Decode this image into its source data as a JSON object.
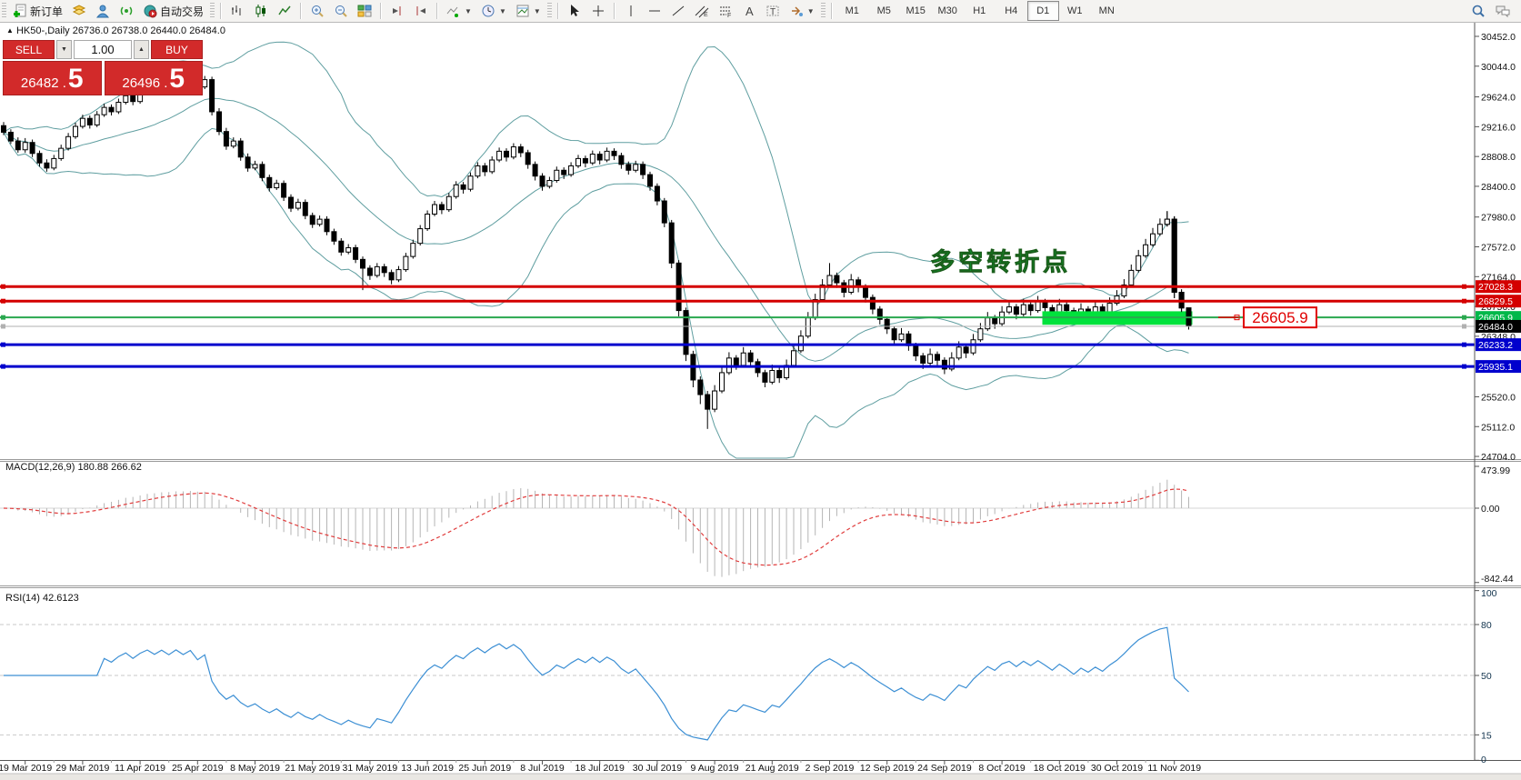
{
  "toolbar": {
    "new_order_label": "新订单",
    "auto_trading_label": "自动交易",
    "timeframes": [
      "M1",
      "M5",
      "M15",
      "M30",
      "H1",
      "H4",
      "D1",
      "W1",
      "MN"
    ],
    "active_timeframe": "D1",
    "icon_names": [
      "new-order-icon",
      "quotes-icon",
      "market-watch-icon",
      "signal-icon",
      "autotrade-icon",
      "bar-chart-icon",
      "candle-chart-icon",
      "line-chart-icon",
      "zoom-in-icon",
      "zoom-out-icon",
      "tile-windows-icon",
      "shift-end-icon",
      "shift-left-icon",
      "indicators-icon",
      "periods-clock-icon",
      "templates-icon",
      "cursor-icon",
      "crosshair-icon",
      "vline-icon",
      "hline-icon",
      "trendline-icon",
      "channel-icon",
      "fibo-icon",
      "text-icon",
      "label-icon",
      "shapes-icon",
      "search-icon",
      "chat-icon"
    ]
  },
  "title": {
    "symbol_period": "HK50-,Daily",
    "ohlc": "26736.0 26738.0 26440.0 26484.0",
    "marker": "▲"
  },
  "trade_panel": {
    "sell_label": "SELL",
    "buy_label": "BUY",
    "volume": "1.00",
    "sell_price_small": "26482 .",
    "sell_price_big": "5",
    "buy_price_small": "26496 .",
    "buy_price_big": "5"
  },
  "annotation": {
    "text": "多空转折点",
    "color": "#00cc3f",
    "index": 129,
    "price": 27250
  },
  "price_label_box": {
    "text": "26605.9",
    "color": "#e00000"
  },
  "levels": [
    {
      "label": "27028.3",
      "value": 27028.3,
      "color": "#d40000",
      "badge_bg": "#d40000",
      "thickness": 3
    },
    {
      "label": "26829.5",
      "value": 26829.5,
      "color": "#d40000",
      "badge_bg": "#d40000",
      "thickness": 3
    },
    {
      "label": "26605.9",
      "value": 26605.9,
      "color": "#2aa84f",
      "badge_bg": "#00b84a",
      "thickness": 2
    },
    {
      "label": "26484.0",
      "value": 26484.0,
      "color": "#b0b0b0",
      "badge_bg": "#000000",
      "thickness": 1
    },
    {
      "label": "26233.2",
      "value": 26233.2,
      "color": "#0000cd",
      "badge_bg": "#0000cd",
      "thickness": 3
    },
    {
      "label": "25935.1",
      "value": 25935.1,
      "color": "#0000cd",
      "badge_bg": "#0000cd",
      "thickness": 3
    }
  ],
  "y_axis_ticks": [
    "30452.0",
    "30044.0",
    "29624.0",
    "29216.0",
    "28808.0",
    "28400.0",
    "27980.0",
    "27572.0",
    "27164.0",
    "26756.0",
    "26348.0",
    "25520.0",
    "25112.0",
    "24704.0"
  ],
  "x_axis_labels": [
    "19 Mar 2019",
    "29 Mar 2019",
    "11 Apr 2019",
    "25 Apr 2019",
    "8 May 2019",
    "21 May 2019",
    "31 May 2019",
    "13 Jun 2019",
    "25 Jun 2019",
    "8 Jul 2019",
    "18 Jul 2019",
    "30 Jul 2019",
    "9 Aug 2019",
    "21 Aug 2019",
    "2 Sep 2019",
    "12 Sep 2019",
    "24 Sep 2019",
    "8 Oct 2019",
    "18 Oct 2019",
    "30 Oct 2019",
    "11 Nov 2019"
  ],
  "x_tick_indices": [
    3,
    11,
    19,
    27,
    35,
    43,
    51,
    59,
    67,
    75,
    83,
    91,
    99,
    107,
    115,
    123,
    131,
    139,
    147,
    155,
    163
  ],
  "macd": {
    "title": "MACD(12,26,9) 180.88 266.62",
    "ticks": [
      {
        "label": "473.99",
        "value": 473.99
      },
      {
        "label": "0.00",
        "value": 0
      },
      {
        "label": "-842.44",
        "value": -842.44
      }
    ],
    "fast": 12,
    "slow": 26,
    "signal_period": 9
  },
  "rsi": {
    "title": "RSI(14) 42.6123",
    "period": 14,
    "ticks": [
      {
        "label": "100",
        "value": 100
      },
      {
        "label": "80",
        "value": 80
      },
      {
        "label": "50",
        "value": 50
      },
      {
        "label": "15",
        "value": 15
      },
      {
        "label": "0",
        "value": 0
      }
    ],
    "level_lines": [
      80,
      50,
      15
    ],
    "line_color": "#3c8fd4"
  },
  "chart_data": {
    "type": "candlestick",
    "symbol": "HK50-",
    "period": "Daily",
    "bollinger": {
      "period": 20,
      "deviation": 2,
      "color": "#5f9ea0"
    },
    "highlight_zone": {
      "from_index": 145,
      "price_top": 26690,
      "price_bottom": 26505,
      "color": "#00e23c"
    },
    "last_candle": {
      "open": 26736.0,
      "high": 26738.0,
      "low": 26440.0,
      "close": 26484.0
    },
    "candles": [
      [
        29230,
        29280,
        29100,
        29140
      ],
      [
        29140,
        29180,
        28980,
        29020
      ],
      [
        29020,
        29070,
        28860,
        28900
      ],
      [
        28900,
        29060,
        28860,
        29000
      ],
      [
        29000,
        29040,
        28800,
        28850
      ],
      [
        28850,
        28890,
        28670,
        28720
      ],
      [
        28720,
        28770,
        28600,
        28650
      ],
      [
        28650,
        28830,
        28620,
        28780
      ],
      [
        28780,
        28970,
        28750,
        28920
      ],
      [
        28920,
        29130,
        28890,
        29080
      ],
      [
        29080,
        29270,
        29050,
        29220
      ],
      [
        29220,
        29380,
        29190,
        29330
      ],
      [
        29330,
        29370,
        29190,
        29240
      ],
      [
        29240,
        29430,
        29210,
        29380
      ],
      [
        29380,
        29530,
        29350,
        29480
      ],
      [
        29480,
        29520,
        29370,
        29420
      ],
      [
        29420,
        29600,
        29390,
        29550
      ],
      [
        29550,
        29690,
        29520,
        29640
      ],
      [
        29640,
        29680,
        29510,
        29560
      ],
      [
        29560,
        29730,
        29530,
        29680
      ],
      [
        29680,
        29810,
        29650,
        29760
      ],
      [
        29760,
        29800,
        29650,
        29700
      ],
      [
        29700,
        29850,
        29670,
        29800
      ],
      [
        29800,
        29840,
        29690,
        29740
      ],
      [
        29740,
        29900,
        29710,
        29850
      ],
      [
        29850,
        29890,
        29740,
        29790
      ],
      [
        29790,
        29930,
        29760,
        29880
      ],
      [
        29880,
        29920,
        29710,
        29760
      ],
      [
        29760,
        29910,
        29730,
        29860
      ],
      [
        29860,
        29900,
        29370,
        29420
      ],
      [
        29420,
        29470,
        29100,
        29150
      ],
      [
        29150,
        29200,
        28900,
        28950
      ],
      [
        28950,
        29070,
        28920,
        29020
      ],
      [
        29020,
        29060,
        28750,
        28800
      ],
      [
        28800,
        28850,
        28600,
        28650
      ],
      [
        28650,
        28750,
        28620,
        28700
      ],
      [
        28700,
        28740,
        28470,
        28520
      ],
      [
        28520,
        28560,
        28330,
        28380
      ],
      [
        28380,
        28490,
        28350,
        28440
      ],
      [
        28440,
        28480,
        28200,
        28250
      ],
      [
        28250,
        28290,
        28050,
        28100
      ],
      [
        28100,
        28230,
        28070,
        28180
      ],
      [
        28180,
        28220,
        27950,
        28000
      ],
      [
        28000,
        28040,
        27830,
        27880
      ],
      [
        27880,
        28000,
        27850,
        27950
      ],
      [
        27950,
        27990,
        27730,
        27780
      ],
      [
        27780,
        27820,
        27600,
        27650
      ],
      [
        27650,
        27690,
        27450,
        27500
      ],
      [
        27500,
        27610,
        27470,
        27560
      ],
      [
        27560,
        27600,
        27350,
        27400
      ],
      [
        27400,
        27440,
        26980,
        27280
      ],
      [
        27280,
        27320,
        27120,
        27180
      ],
      [
        27180,
        27350,
        27150,
        27300
      ],
      [
        27300,
        27340,
        27160,
        27220
      ],
      [
        27220,
        27260,
        27060,
        27120
      ],
      [
        27120,
        27310,
        27090,
        27260
      ],
      [
        27260,
        27490,
        27230,
        27440
      ],
      [
        27440,
        27670,
        27410,
        27620
      ],
      [
        27620,
        27870,
        27590,
        27820
      ],
      [
        27820,
        28070,
        27790,
        28020
      ],
      [
        28020,
        28200,
        27990,
        28150
      ],
      [
        28150,
        28190,
        28020,
        28080
      ],
      [
        28080,
        28310,
        28050,
        28260
      ],
      [
        28260,
        28470,
        28230,
        28420
      ],
      [
        28420,
        28460,
        28300,
        28360
      ],
      [
        28360,
        28590,
        28330,
        28540
      ],
      [
        28540,
        28730,
        28510,
        28680
      ],
      [
        28680,
        28720,
        28540,
        28600
      ],
      [
        28600,
        28810,
        28570,
        28760
      ],
      [
        28760,
        28930,
        28730,
        28880
      ],
      [
        28880,
        28920,
        28740,
        28800
      ],
      [
        28800,
        28990,
        28770,
        28940
      ],
      [
        28940,
        28980,
        28800,
        28860
      ],
      [
        28860,
        28900,
        28640,
        28700
      ],
      [
        28700,
        28740,
        28480,
        28540
      ],
      [
        28540,
        28580,
        28340,
        28400
      ],
      [
        28400,
        28530,
        28370,
        28480
      ],
      [
        28480,
        28670,
        28450,
        28620
      ],
      [
        28620,
        28660,
        28500,
        28560
      ],
      [
        28560,
        28730,
        28530,
        28680
      ],
      [
        28680,
        28830,
        28650,
        28780
      ],
      [
        28780,
        28820,
        28660,
        28720
      ],
      [
        28720,
        28890,
        28690,
        28840
      ],
      [
        28840,
        28880,
        28700,
        28760
      ],
      [
        28760,
        28930,
        28730,
        28880
      ],
      [
        28880,
        28920,
        28760,
        28820
      ],
      [
        28820,
        28860,
        28640,
        28700
      ],
      [
        28700,
        28740,
        28560,
        28620
      ],
      [
        28620,
        28750,
        28590,
        28700
      ],
      [
        28700,
        28740,
        28500,
        28560
      ],
      [
        28560,
        28600,
        28340,
        28400
      ],
      [
        28400,
        28440,
        28140,
        28200
      ],
      [
        28200,
        28240,
        27840,
        27900
      ],
      [
        27900,
        27940,
        27280,
        27350
      ],
      [
        27350,
        27390,
        26620,
        26700
      ],
      [
        26700,
        26740,
        26010,
        26100
      ],
      [
        26100,
        26150,
        25650,
        25750
      ],
      [
        25750,
        25800,
        25420,
        25550
      ],
      [
        25550,
        25600,
        25080,
        25350
      ],
      [
        25350,
        25680,
        25310,
        25600
      ],
      [
        25600,
        25930,
        25570,
        25850
      ],
      [
        25850,
        26130,
        25820,
        26050
      ],
      [
        26050,
        26090,
        25890,
        25950
      ],
      [
        25950,
        26200,
        25920,
        26120
      ],
      [
        26120,
        26160,
        25940,
        26000
      ],
      [
        26000,
        26040,
        25790,
        25850
      ],
      [
        25850,
        25890,
        25650,
        25720
      ],
      [
        25720,
        25960,
        25690,
        25880
      ],
      [
        25880,
        25920,
        25710,
        25780
      ],
      [
        25780,
        26030,
        25750,
        25950
      ],
      [
        25950,
        26230,
        25920,
        26150
      ],
      [
        26150,
        26430,
        26120,
        26350
      ],
      [
        26350,
        26680,
        26320,
        26600
      ],
      [
        26600,
        26930,
        26570,
        26850
      ],
      [
        26850,
        27130,
        26820,
        27050
      ],
      [
        27050,
        27350,
        27020,
        27180
      ],
      [
        27180,
        27220,
        27010,
        27080
      ],
      [
        27080,
        27120,
        26880,
        26950
      ],
      [
        26950,
        27200,
        26920,
        27120
      ],
      [
        27120,
        27160,
        26950,
        27020
      ],
      [
        27020,
        27060,
        26810,
        26880
      ],
      [
        26880,
        26920,
        26650,
        26720
      ],
      [
        26720,
        26760,
        26510,
        26580
      ],
      [
        26580,
        26620,
        26380,
        26450
      ],
      [
        26450,
        26490,
        26230,
        26300
      ],
      [
        26300,
        26460,
        26270,
        26380
      ],
      [
        26380,
        26420,
        26150,
        26220
      ],
      [
        26220,
        26260,
        26010,
        26080
      ],
      [
        26080,
        26120,
        25900,
        25980
      ],
      [
        25980,
        26180,
        25950,
        26100
      ],
      [
        26100,
        26140,
        25950,
        26020
      ],
      [
        26020,
        26060,
        25830,
        25900
      ],
      [
        25900,
        26130,
        25870,
        26050
      ],
      [
        26050,
        26280,
        26020,
        26200
      ],
      [
        26200,
        26240,
        26050,
        26120
      ],
      [
        26120,
        26380,
        26090,
        26300
      ],
      [
        26300,
        26530,
        26270,
        26450
      ],
      [
        26450,
        26680,
        26420,
        26600
      ],
      [
        26600,
        26640,
        26450,
        26520
      ],
      [
        26520,
        26760,
        26490,
        26680
      ],
      [
        26680,
        26830,
        26650,
        26750
      ],
      [
        26750,
        26790,
        26580,
        26650
      ],
      [
        26650,
        26860,
        26620,
        26780
      ],
      [
        26780,
        26820,
        26630,
        26700
      ],
      [
        26700,
        26900,
        26670,
        26820
      ],
      [
        26820,
        26860,
        26670,
        26740
      ],
      [
        26740,
        26780,
        26580,
        26650
      ],
      [
        26650,
        26860,
        26620,
        26780
      ],
      [
        26780,
        26820,
        26630,
        26700
      ],
      [
        26700,
        26740,
        26530,
        26600
      ],
      [
        26600,
        26800,
        26570,
        26720
      ],
      [
        26720,
        26760,
        26580,
        26650
      ],
      [
        26650,
        26830,
        26620,
        26750
      ],
      [
        26750,
        26790,
        26610,
        26680
      ],
      [
        26680,
        26880,
        26650,
        26800
      ],
      [
        26800,
        26980,
        26770,
        26900
      ],
      [
        26900,
        27130,
        26870,
        27050
      ],
      [
        27050,
        27330,
        27020,
        27250
      ],
      [
        27250,
        27530,
        27220,
        27450
      ],
      [
        27450,
        27680,
        27420,
        27600
      ],
      [
        27600,
        27830,
        27570,
        27750
      ],
      [
        27750,
        27960,
        27720,
        27880
      ],
      [
        27880,
        28060,
        27850,
        27950
      ],
      [
        27950,
        27990,
        26870,
        26950
      ],
      [
        26950,
        26990,
        26680,
        26736
      ],
      [
        26736,
        26738,
        26440,
        26484
      ]
    ]
  }
}
